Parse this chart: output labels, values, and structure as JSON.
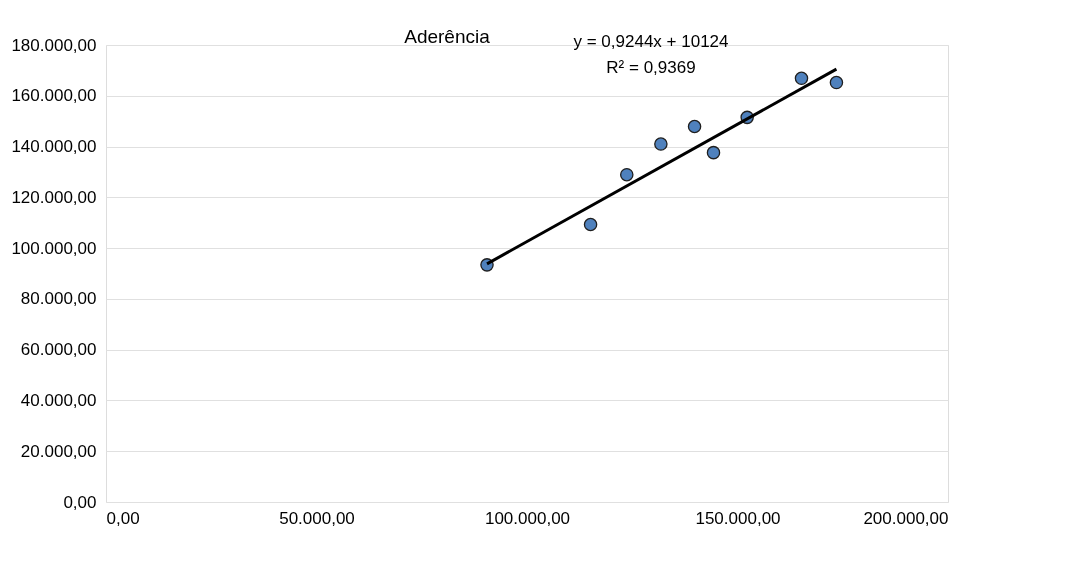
{
  "chart_data": {
    "type": "scatter",
    "title": "Aderência",
    "xlim": [
      0,
      200000
    ],
    "ylim": [
      0,
      180000
    ],
    "xticks": [
      {
        "value": 0,
        "label": "0,00"
      },
      {
        "value": 50000,
        "label": "50.000,00"
      },
      {
        "value": 100000,
        "label": "100.000,00"
      },
      {
        "value": 150000,
        "label": "150.000,00"
      },
      {
        "value": 200000,
        "label": "200.000,00"
      }
    ],
    "yticks": [
      {
        "value": 0,
        "label": "0,00"
      },
      {
        "value": 20000,
        "label": "20.000,00"
      },
      {
        "value": 40000,
        "label": "40.000,00"
      },
      {
        "value": 60000,
        "label": "60.000,00"
      },
      {
        "value": 80000,
        "label": "80.000,00"
      },
      {
        "value": 100000,
        "label": "100.000,00"
      },
      {
        "value": 120000,
        "label": "120.000,00"
      },
      {
        "value": 140000,
        "label": "140.000,00"
      },
      {
        "value": 160000,
        "label": "160.000,00"
      },
      {
        "value": 180000,
        "label": "180.000,00"
      }
    ],
    "grid": "y",
    "series": [
      {
        "marker": "circle",
        "color": "#4f81bd",
        "x": [
          90500,
          115100,
          123700,
          131800,
          139800,
          144300,
          152300,
          165200,
          173500
        ],
        "values": [
          93400,
          109300,
          128900,
          141000,
          147900,
          137600,
          151500,
          166900,
          165200
        ]
      },
      {
        "type": "line",
        "marker": "none",
        "color": "#000000",
        "line_style": "solid",
        "x": [
          90500,
          173500
        ],
        "values": [
          93800,
          170500
        ]
      }
    ],
    "annotations": [
      "y = 0,9244x + 10124",
      "R² = 0,9369"
    ]
  }
}
